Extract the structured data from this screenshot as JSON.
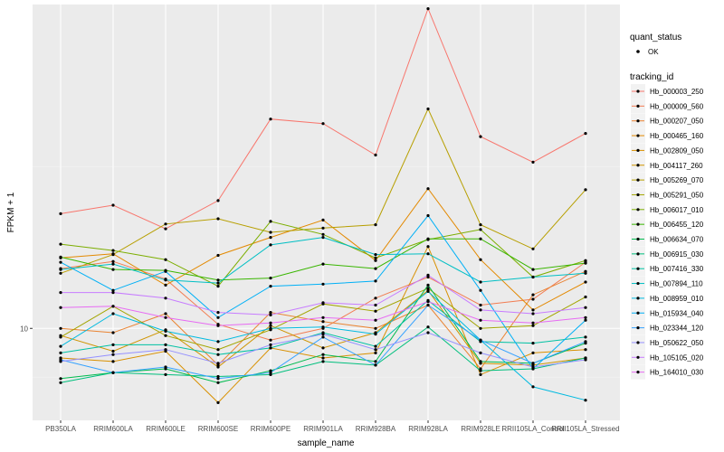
{
  "chart_data": {
    "type": "line",
    "xlabel": "sample_name",
    "ylabel": "FPKM + 1",
    "y_scale": "log10",
    "y_tick_labels": [
      "10"
    ],
    "y_ticks": [
      10
    ],
    "categories": [
      "PB350LA",
      "RRIM600LA",
      "RRIM600LE",
      "RRIM600SE",
      "RRIM600PE",
      "RRIM901LA",
      "RRIM928BA",
      "RRIM928LA",
      "RRIM928LE",
      "RRII105LA_Control",
      "RRII105LA_Stressed"
    ],
    "legend_shape": {
      "title": "quant_status",
      "entries": [
        "OK"
      ]
    },
    "legend_color_title": "tracking_id",
    "grid": true,
    "series": [
      {
        "name": "Hb_000003_250",
        "color": "#F8766D",
        "values": [
          22.6,
          24.0,
          20.3,
          24.8,
          44.3,
          42.9,
          34.3,
          97.1,
          39.1,
          32.6,
          40.0
        ]
      },
      {
        "name": "Hb_000009_560",
        "color": "#F27D52",
        "values": [
          15.3,
          16.1,
          14.2,
          10.3,
          9.2,
          10.0,
          12.4,
          14.4,
          11.8,
          12.3,
          16.0
        ]
      },
      {
        "name": "Hb_000207_050",
        "color": "#EA8331",
        "values": [
          10.0,
          9.7,
          11.1,
          7.7,
          11.2,
          10.5,
          10.0,
          11.8,
          7.5,
          12.7,
          15.0
        ]
      },
      {
        "name": "Hb_000465_160",
        "color": "#E38900",
        "values": [
          16.5,
          17.0,
          13.6,
          16.8,
          19.1,
          21.6,
          16.2,
          27.0,
          16.3,
          11.4,
          13.9
        ]
      },
      {
        "name": "Hb_002809_050",
        "color": "#D89000",
        "values": [
          8.1,
          7.9,
          8.5,
          5.9,
          8.7,
          8.1,
          8.4,
          17.9,
          7.2,
          8.4,
          8.6
        ]
      },
      {
        "name": "Hb_004117_260",
        "color": "#CF9400",
        "values": [
          9.5,
          8.5,
          9.9,
          7.6,
          10.2,
          8.7,
          9.7,
          13.1,
          7.8,
          7.7,
          8.1
        ]
      },
      {
        "name": "Hb_005269_070",
        "color": "#B79F00",
        "values": [
          14.8,
          16.9,
          21.0,
          21.8,
          19.8,
          20.4,
          20.9,
          47.6,
          20.9,
          17.6,
          26.8
        ]
      },
      {
        "name": "Hb_005291_050",
        "color": "#A3A500",
        "values": [
          9.4,
          11.7,
          9.5,
          8.6,
          9.9,
          11.9,
          11.3,
          13.3,
          10.0,
          10.2,
          12.5
        ]
      },
      {
        "name": "Hb_006017_010",
        "color": "#7CAE00",
        "values": [
          18.2,
          17.4,
          16.3,
          13.5,
          21.4,
          19.5,
          16.5,
          18.8,
          20.2,
          14.4,
          16.2
        ]
      },
      {
        "name": "Hb_006455_120",
        "color": "#39B600",
        "values": [
          16.6,
          15.2,
          15.1,
          14.1,
          14.3,
          15.8,
          15.3,
          18.9,
          18.9,
          15.2,
          15.9
        ]
      },
      {
        "name": "Hb_006634_070",
        "color": "#00BB4E",
        "values": [
          7.0,
          7.3,
          7.5,
          6.8,
          7.4,
          8.3,
          7.9,
          13.6,
          7.9,
          7.8,
          9.0
        ]
      },
      {
        "name": "Hb_006915_030",
        "color": "#00BF7D",
        "values": [
          6.8,
          7.3,
          7.2,
          7.1,
          7.2,
          7.9,
          7.7,
          10.1,
          7.4,
          7.5,
          8.1
        ]
      },
      {
        "name": "Hb_007416_330",
        "color": "#00C1A3",
        "values": [
          8.4,
          8.9,
          8.9,
          8.3,
          8.7,
          9.7,
          8.8,
          12.2,
          9.1,
          9.0,
          9.4
        ]
      },
      {
        "name": "Hb_007894_110",
        "color": "#00BFC4",
        "values": [
          15.2,
          15.8,
          14.1,
          13.8,
          18.1,
          19.1,
          16.9,
          17.0,
          13.9,
          14.4,
          14.8
        ]
      },
      {
        "name": "Hb_008959_010",
        "color": "#00BAE0",
        "values": [
          8.8,
          11.1,
          9.8,
          9.1,
          10.0,
          10.1,
          9.6,
          13.0,
          9.2,
          6.6,
          6.0
        ]
      },
      {
        "name": "Hb_015934_040",
        "color": "#00B0F6",
        "values": [
          16.0,
          13.1,
          15.0,
          10.8,
          13.5,
          13.7,
          14.0,
          22.3,
          13.1,
          7.5,
          10.6
        ]
      },
      {
        "name": "Hb_023344_120",
        "color": "#35A2FF",
        "values": [
          8.0,
          7.3,
          7.6,
          7.0,
          7.3,
          9.4,
          7.7,
          11.8,
          9.2,
          7.8,
          9.1
        ]
      },
      {
        "name": "Hb_050622_050",
        "color": "#9590FF",
        "values": [
          7.9,
          8.3,
          8.6,
          7.8,
          8.9,
          9.6,
          8.6,
          9.7,
          8.4,
          7.6,
          8.0
        ]
      },
      {
        "name": "Hb_105105_020",
        "color": "#C77CFF",
        "values": [
          12.9,
          12.9,
          12.4,
          11.2,
          11.0,
          12.0,
          11.8,
          14.6,
          11.4,
          11.1,
          11.6
        ]
      },
      {
        "name": "Hb_164010_030",
        "color": "#E76BF3",
        "values": [
          11.6,
          11.7,
          10.8,
          10.2,
          10.4,
          10.8,
          10.6,
          12.1,
          10.6,
          10.4,
          10.8
        ]
      }
    ]
  }
}
